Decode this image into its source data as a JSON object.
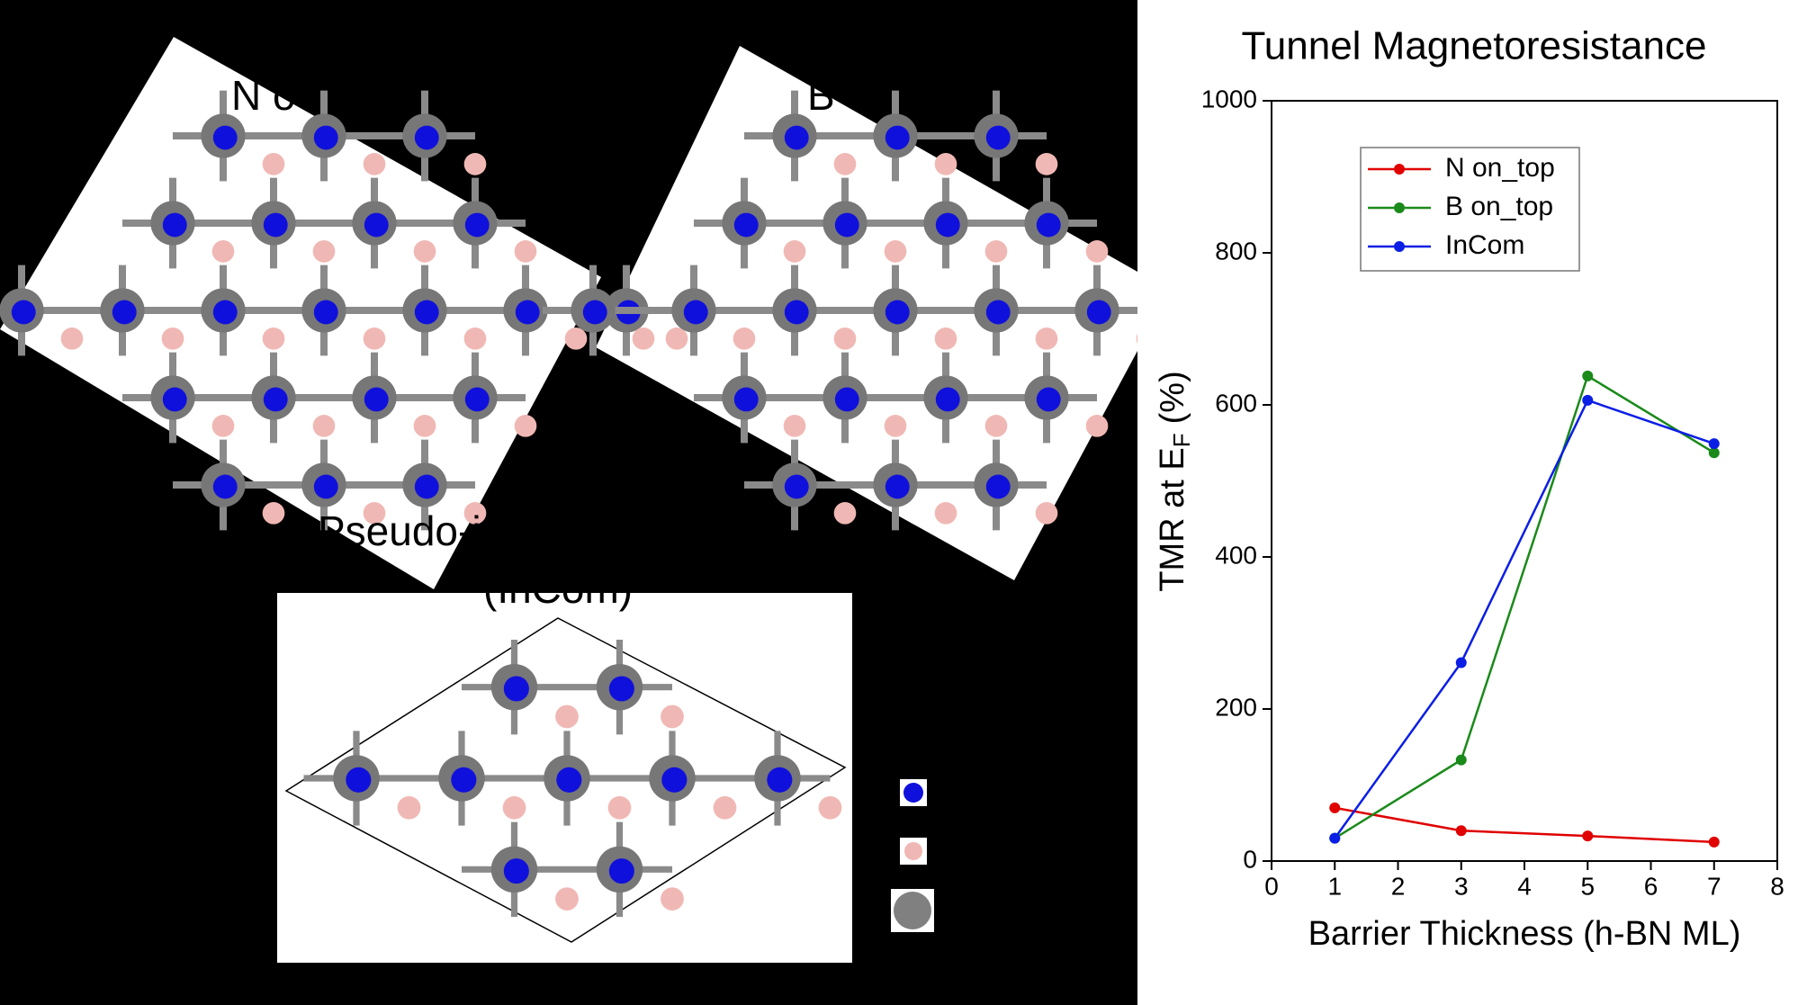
{
  "structure_labels": [
    "N o",
    "B",
    "Pseudo-i",
    "(InCom)"
  ],
  "chart_data": {
    "type": "line",
    "title": "Tunnel Magnetoresistance",
    "x_label": "Barrier Thickness (h-BN ML)",
    "y_label": "TMR at E",
    "y_label_subscript": "F",
    "y_label_suffix": "(%)",
    "x": [
      1,
      3,
      5,
      7
    ],
    "series": [
      {
        "name": "N on_top",
        "color": "#e00000",
        "values": [
          70,
          40,
          33,
          25
        ]
      },
      {
        "name": "B on_top",
        "color": "#1a8a1a",
        "values": [
          30,
          133,
          638,
          537
        ]
      },
      {
        "name": "InCom",
        "color": "#0a1ee6",
        "values": [
          30,
          261,
          606,
          549
        ]
      }
    ],
    "xlim": [
      0,
      8
    ],
    "xticks": [
      0,
      1,
      2,
      3,
      4,
      5,
      6,
      7,
      8
    ],
    "ylim": [
      0,
      1000
    ],
    "yticks": [
      0,
      200,
      400,
      600,
      800,
      1000
    ],
    "grid": false,
    "legend": "upper left"
  }
}
